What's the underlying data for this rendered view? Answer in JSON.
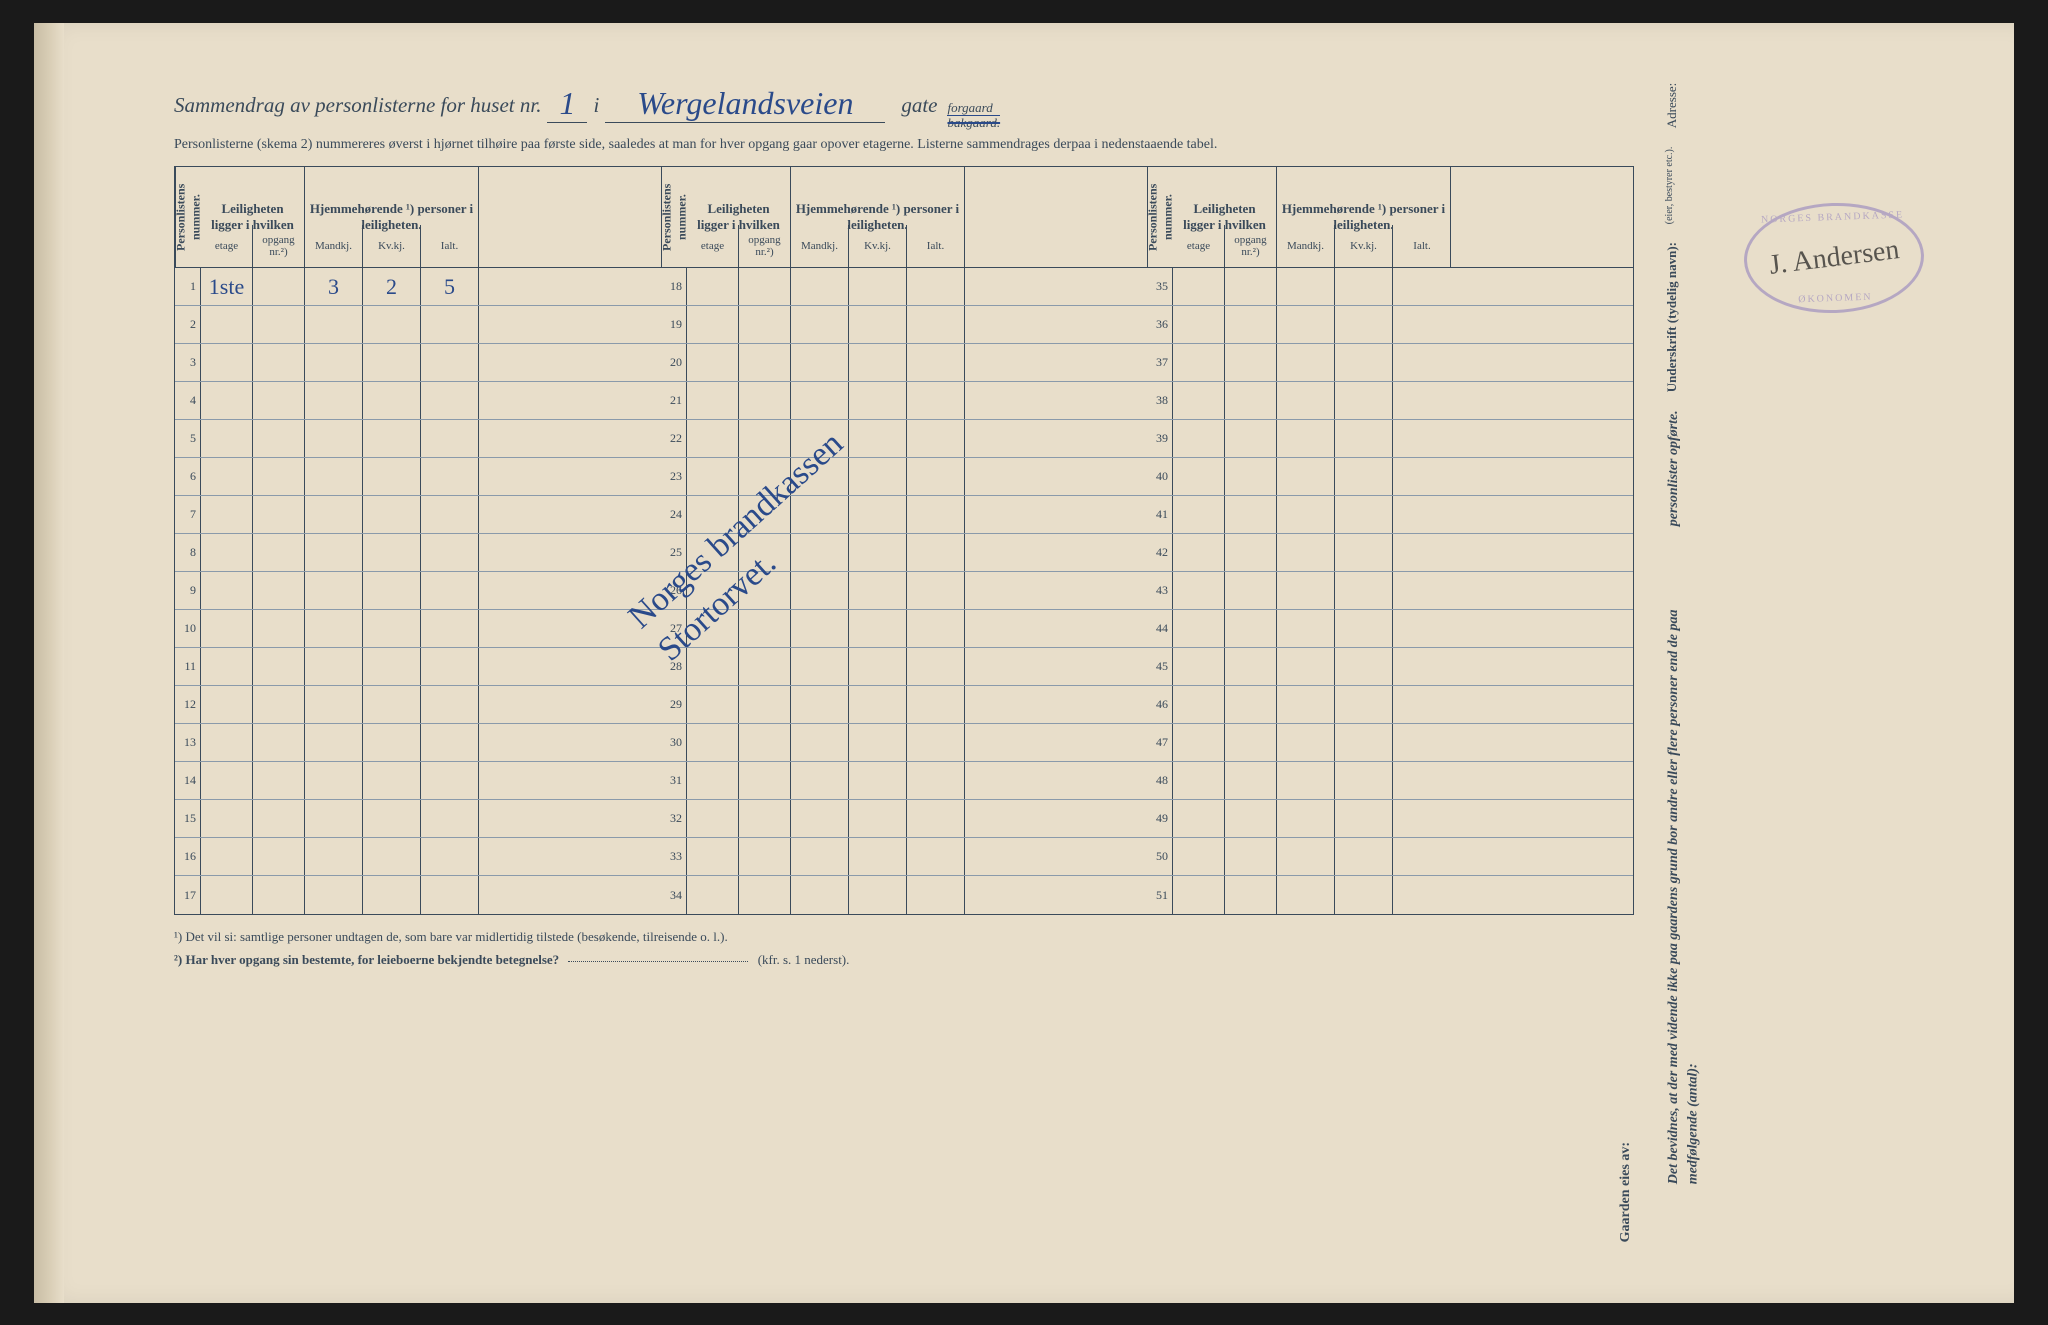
{
  "title": {
    "prefix": "Sammendrag av personlisterne for huset nr.",
    "house_no": "1",
    "conj": "i",
    "street": "Wergelandsveien",
    "gate": "gate",
    "forgaard": "forgaard",
    "bakgaard": "bakgaard."
  },
  "subtitle": "Personlisterne (skema 2) nummereres øverst i hjørnet tilhøire paa første side, saaledes at man for hver opgang gaar opover etagerne. Listerne sammendrages derpaa i nedenstaaende tabel.",
  "headers": {
    "persnum": "Personlistens nummer.",
    "leil": "Leiligheten ligger i hvilken",
    "hjem": "Hjemmehørende ¹) personer i leiligheten.",
    "etage": "etage",
    "opgang": "opgang nr.²)",
    "mandkj": "Mandkj.",
    "kvkj": "Kv.kj.",
    "ialt": "Ialt."
  },
  "row1": {
    "etage": "1ste",
    "mandkj": "3",
    "kvkj": "2",
    "ialt": "5"
  },
  "rownums": {
    "g1": [
      "1",
      "2",
      "3",
      "4",
      "5",
      "6",
      "7",
      "8",
      "9",
      "10",
      "11",
      "12",
      "13",
      "14",
      "15",
      "16",
      "17"
    ],
    "g2": [
      "18",
      "19",
      "20",
      "21",
      "22",
      "23",
      "24",
      "25",
      "26",
      "27",
      "28",
      "29",
      "30",
      "31",
      "32",
      "33",
      "34"
    ],
    "g3": [
      "35",
      "36",
      "37",
      "38",
      "39",
      "40",
      "41",
      "42",
      "43",
      "44",
      "45",
      "46",
      "47",
      "48",
      "49",
      "50",
      "51"
    ]
  },
  "footnotes": {
    "f1": "¹) Det vil si: samtlige personer undtagen de, som bare var midlertidig tilstede (besøkende, tilreisende o. l.).",
    "f2": "²) Har hver opgang sin bestemte, for leieboerne bekjendte betegnelse?",
    "f2_suffix": "(kfr. s. 1 nederst)."
  },
  "side": {
    "attest": "Det bevidnes, at der med vidende ikke paa gaardens grund bor andre eller flere personer end de paa medfølgende (antal):",
    "persop": "personlister opførte.",
    "underskrift": "Underskrift (tydelig navn):",
    "eier": "(eier, bestyrer etc.).",
    "adresse": "Adresse:",
    "gaarden": "Gaarden eies av:"
  },
  "stamp": {
    "top": "NORGES BRANDKASSE",
    "bottom": "ØKONOMEN",
    "signature": "J. Andersen"
  },
  "diagonal": "Norges brandkassen\nStortorvet."
}
